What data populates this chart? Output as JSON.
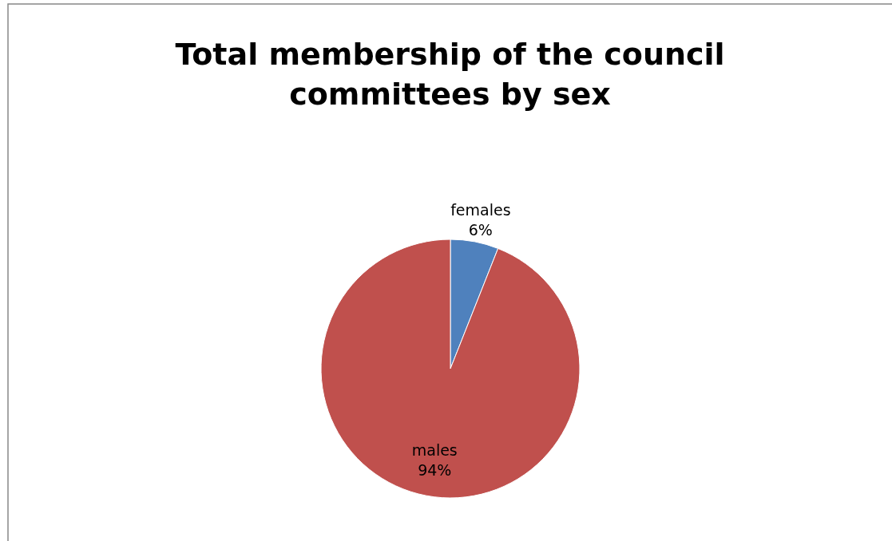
{
  "chart_data": {
    "type": "pie",
    "title": "Total membership of the council committees by sex",
    "categories": [
      "females",
      "males"
    ],
    "values": [
      6,
      94
    ],
    "value_labels": [
      "6%",
      "94%"
    ],
    "colors": [
      "#4f81bd",
      "#c0504d"
    ],
    "legend": false
  }
}
